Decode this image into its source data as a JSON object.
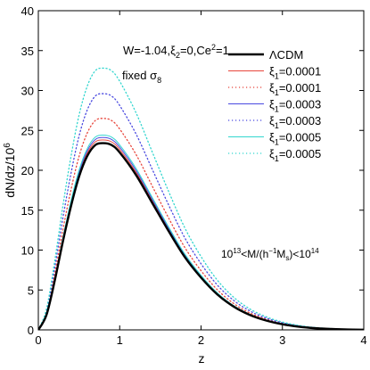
{
  "chart_data": {
    "type": "line",
    "xlabel": "z",
    "ylabel": "dN/dz/10^6",
    "xlim": [
      0,
      4
    ],
    "ylim": [
      0,
      40
    ],
    "xticks": [
      "0",
      "1",
      "2",
      "3",
      "4"
    ],
    "yticks": [
      "0",
      "5",
      "10",
      "15",
      "20",
      "25",
      "30",
      "35",
      "40"
    ],
    "grid": false,
    "legend_position": "top-right",
    "annotations": {
      "params": "W=-1.04,ξ2=0,Ce2=1",
      "fixed": "fixed σ8",
      "mass_range": "10^13<M/(h^-1Ms)<10^14"
    },
    "x": [
      0,
      0.1,
      0.2,
      0.3,
      0.4,
      0.5,
      0.6,
      0.7,
      0.8,
      0.9,
      1.0,
      1.2,
      1.4,
      1.6,
      1.8,
      2.0,
      2.2,
      2.4,
      2.6,
      2.8,
      3.0,
      3.2,
      3.4,
      3.6,
      3.8,
      4.0
    ],
    "base_shape": [
      0,
      0.08,
      0.26,
      0.47,
      0.66,
      0.82,
      0.93,
      0.99,
      1.0,
      0.99,
      0.95,
      0.83,
      0.68,
      0.53,
      0.39,
      0.28,
      0.19,
      0.125,
      0.08,
      0.05,
      0.03,
      0.017,
      0.009,
      0.005,
      0.002,
      0.001
    ],
    "series": [
      {
        "name": "ΛCDM",
        "peak": 23.4,
        "color": "#000000",
        "style": "solid",
        "width": 2.4
      },
      {
        "name": "ξ1=0.0001",
        "peak": 23.8,
        "color": "#e8463c",
        "style": "solid",
        "width": 1
      },
      {
        "name": "ξ1=0.0001",
        "peak": 26.5,
        "color": "#e8463c",
        "style": "dotted",
        "width": 1.3
      },
      {
        "name": "ξ1=0.0003",
        "peak": 24.1,
        "color": "#4a4ae0",
        "style": "solid",
        "width": 1
      },
      {
        "name": "ξ1=0.0003",
        "peak": 29.6,
        "color": "#4a4ae0",
        "style": "dotted",
        "width": 1.3
      },
      {
        "name": "ξ1=0.0005",
        "peak": 24.4,
        "color": "#33d6cf",
        "style": "solid",
        "width": 1
      },
      {
        "name": "ξ1=0.0005",
        "peak": 32.8,
        "color": "#33d6cf",
        "style": "dotted",
        "width": 1.3
      }
    ]
  }
}
